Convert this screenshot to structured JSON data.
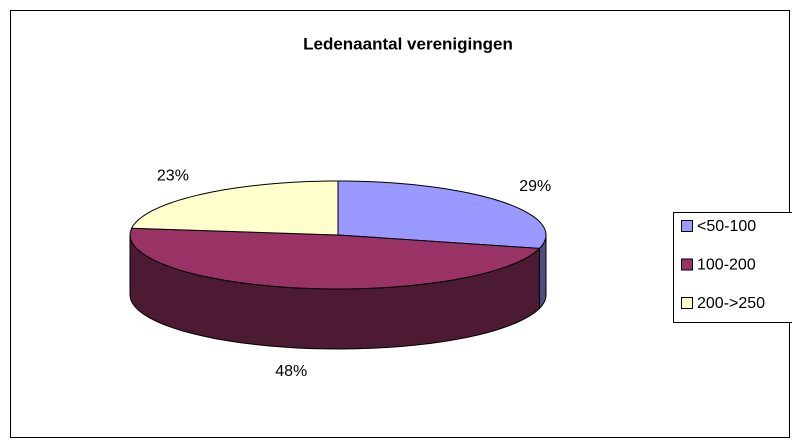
{
  "chart_data": {
    "type": "pie",
    "title": "Ledenaantal verenigingen",
    "categories": [
      "<50-100",
      "100-200",
      "200->250"
    ],
    "values": [
      29,
      48,
      23
    ],
    "value_labels": [
      "29%",
      "48%",
      "23%"
    ],
    "colors": [
      "#9999ff",
      "#993366",
      "#ffffcc"
    ],
    "legend": "right"
  }
}
